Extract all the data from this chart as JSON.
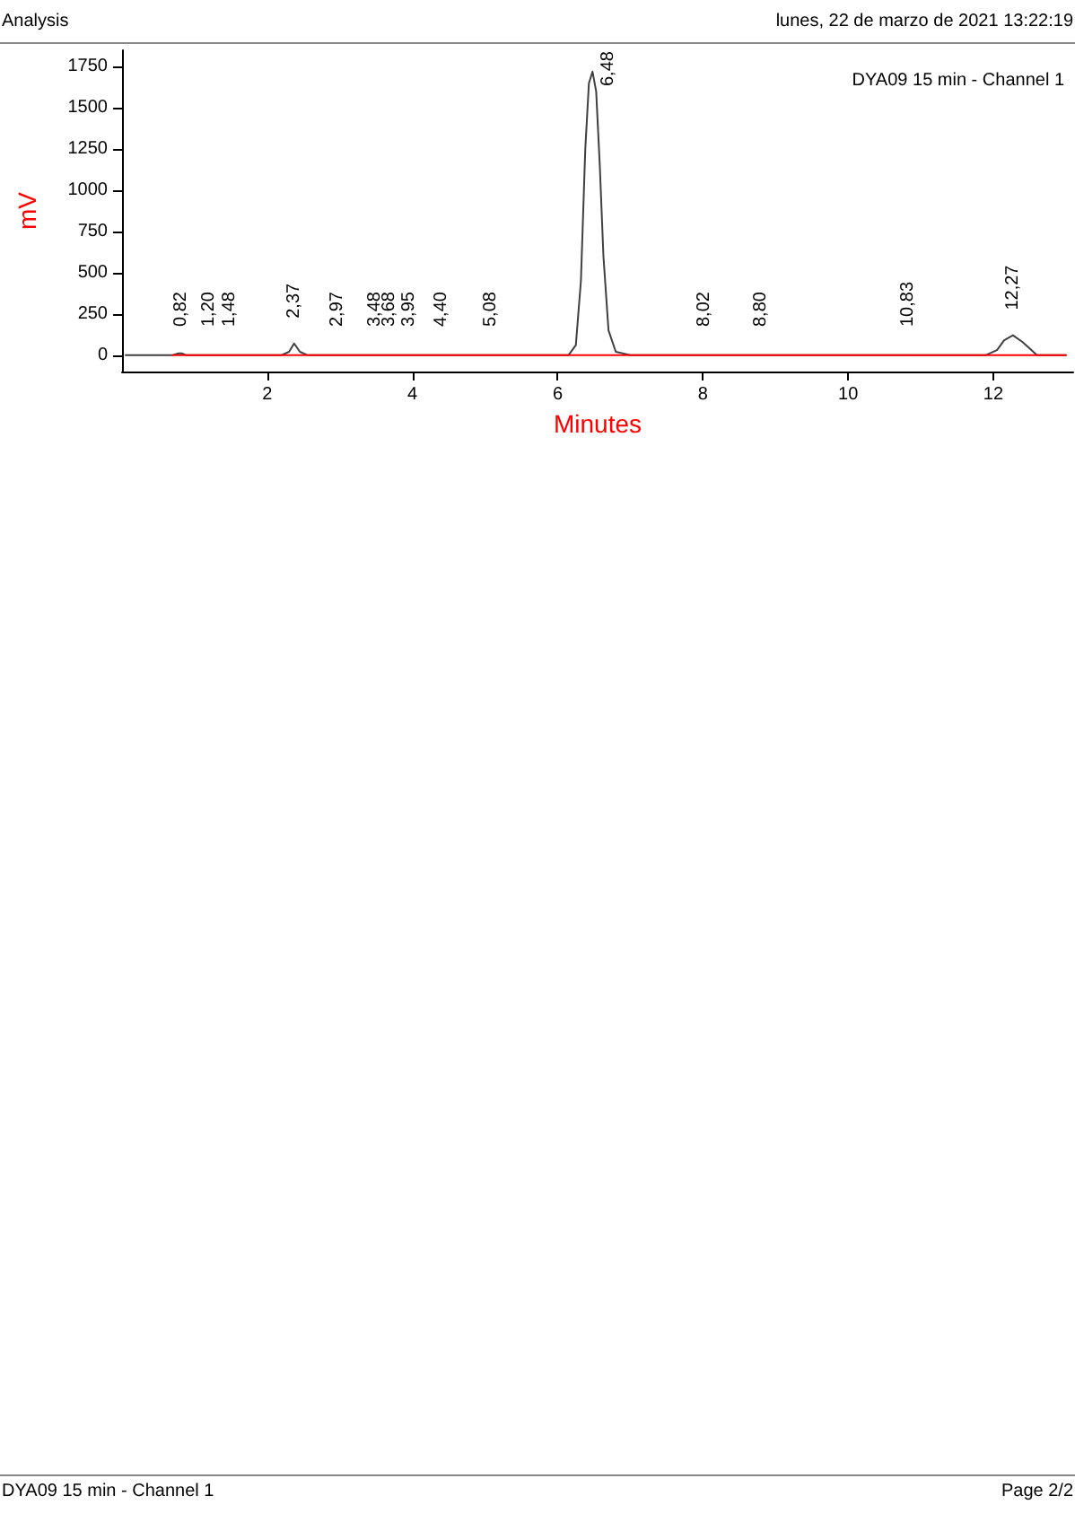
{
  "chart_data": {
    "type": "line",
    "title": "DYA09 15 min - Channel 1",
    "xlabel": "Minutes",
    "ylabel": "mV",
    "xlim": [
      0,
      13.1
    ],
    "xticks": [
      2,
      4,
      6,
      8,
      10,
      12
    ],
    "ylim": [
      -100,
      1850
    ],
    "yticks": [
      0,
      250,
      500,
      750,
      1000,
      1250,
      1500,
      1750
    ],
    "grid": false,
    "marker": "none",
    "line_style": "solid",
    "series": [
      {
        "color": "#404040",
        "x": [
          0.05,
          0.7,
          0.78,
          0.82,
          0.88,
          1.2,
          1.48,
          2.2,
          2.3,
          2.37,
          2.45,
          2.55,
          2.97,
          3.48,
          4.4,
          5.08,
          6.15,
          6.25,
          6.32,
          6.38,
          6.43,
          6.48,
          6.53,
          6.58,
          6.63,
          6.7,
          6.8,
          7.0,
          8.02,
          8.8,
          10.83,
          11.9,
          12.05,
          12.15,
          12.27,
          12.4,
          12.5,
          12.6,
          13.0
        ],
        "values": [
          0,
          0,
          10,
          10,
          0,
          0,
          0,
          0,
          20,
          70,
          20,
          0,
          0,
          0,
          0,
          0,
          0,
          60,
          450,
          1250,
          1650,
          1720,
          1600,
          1150,
          600,
          150,
          20,
          0,
          0,
          0,
          0,
          0,
          30,
          90,
          120,
          80,
          40,
          0,
          0
        ]
      },
      {
        "color": "#ff0000",
        "x": [
          0.7,
          13.0
        ],
        "values": [
          0,
          0
        ]
      }
    ],
    "annotations": [
      "Analysis",
      "lunes, 22 de marzo de 2021 13:22:19",
      "DYA09 15 min - Channel 1",
      "Page 2/2",
      {
        "text": "0,82",
        "x": 0.82,
        "y": 10
      },
      {
        "text": "1,20",
        "x": 1.2,
        "y": 0
      },
      {
        "text": "1,48",
        "x": 1.48,
        "y": 0
      },
      {
        "text": "2,37",
        "x": 2.37,
        "y": 70
      },
      {
        "text": "2,97",
        "x": 2.97,
        "y": 0
      },
      {
        "text": "3,48",
        "x": 3.48,
        "y": 0
      },
      {
        "text": "3,68",
        "x": 3.68,
        "y": 0
      },
      {
        "text": "3,95",
        "x": 3.95,
        "y": 0
      },
      {
        "text": "4,40",
        "x": 4.4,
        "y": 0
      },
      {
        "text": "5,08",
        "x": 5.08,
        "y": 0
      },
      {
        "text": "6,48",
        "x": 6.48,
        "y": 1720
      },
      {
        "text": "8,02",
        "x": 8.02,
        "y": 0
      },
      {
        "text": "8,80",
        "x": 8.8,
        "y": 0
      },
      {
        "text": "10,83",
        "x": 10.83,
        "y": 0
      },
      {
        "text": "12,27",
        "x": 12.27,
        "y": 120
      }
    ]
  }
}
